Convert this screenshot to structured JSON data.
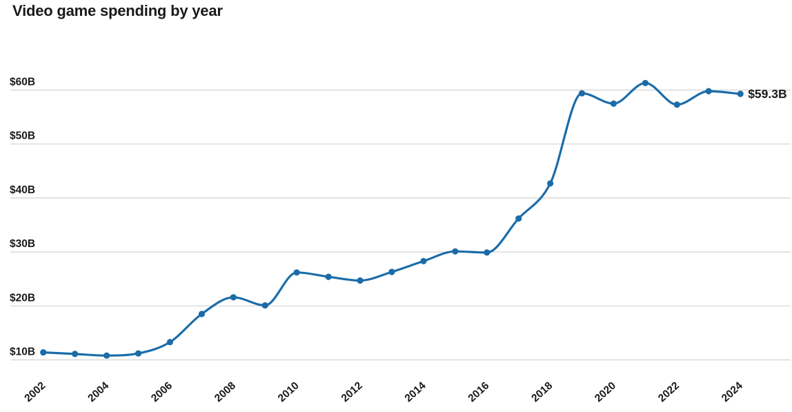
{
  "chart_data": {
    "type": "line",
    "title": "Video game spending by year",
    "x": [
      2002,
      2003,
      2004,
      2005,
      2006,
      2007,
      2008,
      2009,
      2010,
      2011,
      2012,
      2013,
      2014,
      2015,
      2016,
      2017,
      2018,
      2019,
      2020,
      2021,
      2022,
      2023,
      2024
    ],
    "values": [
      11.4,
      11.1,
      10.8,
      11.2,
      13.3,
      18.5,
      21.6,
      20.1,
      26.2,
      25.4,
      24.7,
      26.3,
      28.3,
      30.1,
      29.9,
      36.2,
      42.7,
      59.4,
      57.5,
      61.3,
      57.3,
      59.8,
      59.3
    ],
    "xlabel": "",
    "ylabel": "",
    "ylim": [
      8,
      63
    ],
    "yticks": [
      10,
      20,
      30,
      40,
      50,
      60
    ],
    "ytick_labels": [
      "$10B",
      "$20B",
      "$30B",
      "$40B",
      "$50B",
      "$60B"
    ],
    "xticks": [
      2002,
      2004,
      2006,
      2008,
      2010,
      2012,
      2014,
      2016,
      2018,
      2020,
      2022,
      2024
    ],
    "xtick_labels": [
      "2002",
      "2004",
      "2006",
      "2008",
      "2010",
      "2012",
      "2014",
      "2016",
      "2018",
      "2020",
      "2022",
      "2024"
    ],
    "grid": "horizontal",
    "legend": false,
    "end_label": "$59.3B"
  },
  "colors": {
    "line": "#1b6ca8",
    "marker": "#1b6ca8",
    "grid": "#d2d2d2",
    "text": "#1a1a1a",
    "background": "#ffffff"
  }
}
